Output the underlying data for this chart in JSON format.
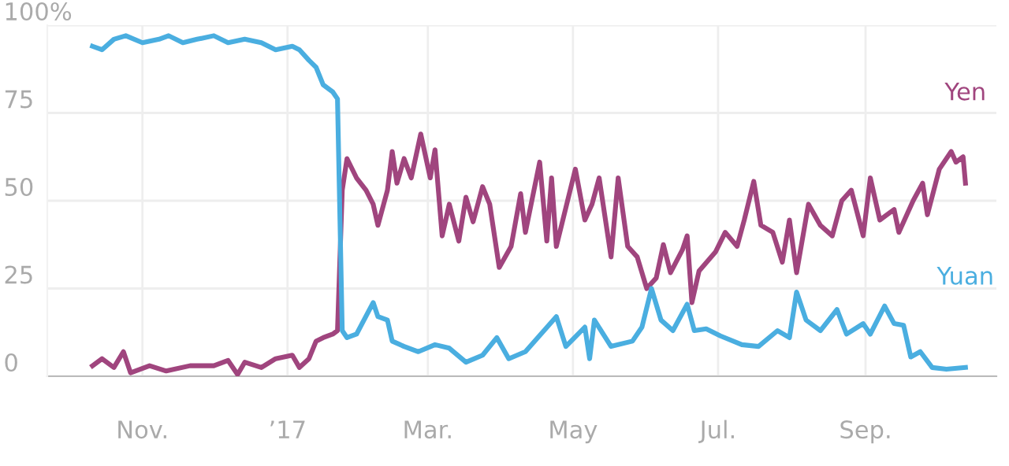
{
  "chart_data": {
    "type": "line",
    "xlim": [
      "2016-09-22",
      "2017-10-26"
    ],
    "xticks": [
      {
        "value": "2016-11-01",
        "label": "Nov."
      },
      {
        "value": "2017-01-01",
        "label": "’17"
      },
      {
        "value": "2017-03-01",
        "label": "Mar."
      },
      {
        "value": "2017-05-01",
        "label": "May"
      },
      {
        "value": "2017-07-01",
        "label": "Jul."
      },
      {
        "value": "2017-09-01",
        "label": "Sep."
      }
    ],
    "ylim": [
      0,
      100
    ],
    "yticks": [
      0,
      25,
      50,
      75,
      {
        "value": 100,
        "label": "100%"
      }
    ],
    "grid": true,
    "legend": false,
    "marker": "none",
    "line_style": "solid",
    "series": [
      {
        "name": "Yen",
        "color": "#a0457e",
        "x": [
          "2016-10-11",
          "2016-10-15",
          "2016-10-20",
          "2016-10-24",
          "2016-10-27",
          "2016-11-04",
          "2016-11-11",
          "2016-11-21",
          "2016-12-01",
          "2016-12-07",
          "2016-12-11",
          "2016-12-14",
          "2016-12-21",
          "2016-12-27",
          "2017-01-03",
          "2017-01-06",
          "2017-01-10",
          "2017-01-13",
          "2017-01-16",
          "2017-01-20",
          "2017-01-22",
          "2017-01-24",
          "2017-01-26",
          "2017-01-30",
          "2017-02-03",
          "2017-02-06",
          "2017-02-08",
          "2017-02-12",
          "2017-02-14",
          "2017-02-16",
          "2017-02-19",
          "2017-02-22",
          "2017-02-26",
          "2017-03-02",
          "2017-03-04",
          "2017-03-07",
          "2017-03-10",
          "2017-03-14",
          "2017-03-17",
          "2017-03-20",
          "2017-03-24",
          "2017-03-27",
          "2017-03-31",
          "2017-04-05",
          "2017-04-09",
          "2017-04-11",
          "2017-04-17",
          "2017-04-20",
          "2017-04-22",
          "2017-04-24",
          "2017-05-02",
          "2017-05-06",
          "2017-05-09",
          "2017-05-12",
          "2017-05-17",
          "2017-05-20",
          "2017-05-24",
          "2017-05-28",
          "2017-06-01",
          "2017-06-05",
          "2017-06-08",
          "2017-06-11",
          "2017-06-16",
          "2017-06-18",
          "2017-06-20",
          "2017-06-23",
          "2017-06-30",
          "2017-07-04",
          "2017-07-09",
          "2017-07-12",
          "2017-07-16",
          "2017-07-19",
          "2017-07-24",
          "2017-07-28",
          "2017-07-31",
          "2017-08-03",
          "2017-08-08",
          "2017-08-13",
          "2017-08-18",
          "2017-08-22",
          "2017-08-26",
          "2017-08-31",
          "2017-09-03",
          "2017-09-07",
          "2017-09-13",
          "2017-09-15",
          "2017-09-21",
          "2017-09-25",
          "2017-09-27",
          "2017-10-02",
          "2017-10-07",
          "2017-10-09",
          "2017-10-12",
          "2017-10-13"
        ],
        "values": [
          3,
          5,
          2.5,
          7,
          1,
          3,
          1.5,
          3,
          3,
          4.5,
          0.5,
          4,
          2.5,
          5,
          6,
          2.5,
          5,
          10,
          11,
          12,
          13,
          53,
          62,
          56.5,
          53,
          49,
          43,
          53,
          64,
          55,
          62,
          56.5,
          69,
          56.5,
          64.5,
          40,
          49,
          38.5,
          51,
          44,
          54,
          49,
          31,
          37,
          52,
          41,
          61,
          38.5,
          56.5,
          37,
          59,
          44.5,
          49,
          56.5,
          34,
          56.5,
          37,
          34,
          25,
          28,
          37.5,
          29.5,
          36,
          40,
          21,
          30,
          35.5,
          41,
          37,
          44.5,
          55.5,
          43,
          41,
          32.5,
          44.5,
          29.5,
          49,
          43,
          40,
          50,
          53,
          40,
          56.5,
          44.5,
          47.5,
          41,
          50,
          55,
          46,
          59,
          64,
          61,
          62.5,
          55
        ]
      },
      {
        "name": "Yuan",
        "color": "#4aaee0",
        "x": [
          "2016-10-11",
          "2016-10-15",
          "2016-10-20",
          "2016-10-25",
          "2016-11-01",
          "2016-11-08",
          "2016-11-12",
          "2016-11-18",
          "2016-11-24",
          "2016-12-01",
          "2016-12-07",
          "2016-12-14",
          "2016-12-21",
          "2016-12-27",
          "2017-01-03",
          "2017-01-06",
          "2017-01-10",
          "2017-01-13",
          "2017-01-16",
          "2017-01-20",
          "2017-01-22",
          "2017-01-24",
          "2017-01-26",
          "2017-01-30",
          "2017-02-06",
          "2017-02-08",
          "2017-02-12",
          "2017-02-14",
          "2017-02-19",
          "2017-02-25",
          "2017-03-04",
          "2017-03-10",
          "2017-03-17",
          "2017-03-24",
          "2017-03-30",
          "2017-04-04",
          "2017-04-11",
          "2017-04-24",
          "2017-04-28",
          "2017-05-06",
          "2017-05-08",
          "2017-05-10",
          "2017-05-17",
          "2017-05-26",
          "2017-05-30",
          "2017-06-03",
          "2017-06-07",
          "2017-06-12",
          "2017-06-18",
          "2017-06-21",
          "2017-06-26",
          "2017-07-02",
          "2017-07-11",
          "2017-07-18",
          "2017-07-26",
          "2017-07-31",
          "2017-08-03",
          "2017-08-07",
          "2017-08-13",
          "2017-08-20",
          "2017-08-24",
          "2017-08-31",
          "2017-09-03",
          "2017-09-09",
          "2017-09-13",
          "2017-09-17",
          "2017-09-20",
          "2017-09-24",
          "2017-09-29",
          "2017-10-05",
          "2017-10-13"
        ],
        "values": [
          94,
          93,
          96,
          97,
          95,
          96,
          97,
          95,
          96,
          97,
          95,
          96,
          95,
          93,
          94,
          93,
          90,
          88,
          83,
          81,
          79,
          13,
          11,
          12,
          21,
          17,
          16,
          10,
          8.5,
          7,
          9,
          8,
          4,
          6,
          11,
          5,
          7,
          17,
          8.5,
          14,
          5,
          16,
          8.5,
          10,
          14,
          25,
          16,
          13,
          20.5,
          13,
          13.5,
          11.5,
          9,
          8.5,
          13,
          11,
          24,
          16,
          13,
          19,
          12,
          15,
          12,
          20,
          15,
          14.5,
          5.5,
          7,
          2.5,
          2,
          2.5
        ]
      }
    ]
  }
}
